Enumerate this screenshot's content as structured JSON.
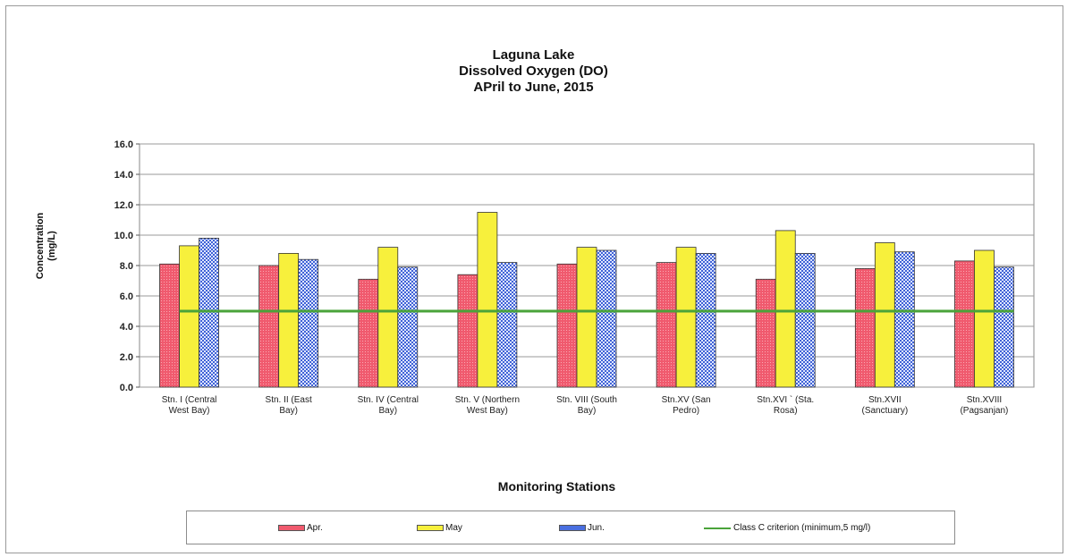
{
  "chart_data": {
    "type": "bar",
    "title_lines": [
      "Laguna Lake",
      "Dissolved Oxygen (DO)",
      "APril to June, 2015"
    ],
    "xlabel": "Monitoring Stations",
    "ylabel_lines": [
      "Concentration",
      "(mg/L)"
    ],
    "ylim": [
      0,
      16
    ],
    "yticks": [
      "0.0",
      "2.0",
      "4.0",
      "6.0",
      "8.0",
      "10.0",
      "12.0",
      "14.0",
      "16.0"
    ],
    "grid": true,
    "legend_position": "bottom",
    "categories": [
      [
        "Stn. I     (Central",
        "West Bay)"
      ],
      [
        "Stn. II    (East",
        "Bay)"
      ],
      [
        "Stn. IV    (Central",
        "Bay)"
      ],
      [
        "Stn. V     (Northern",
        "West Bay)"
      ],
      [
        "Stn. VIII   (South",
        "Bay)"
      ],
      [
        "Stn.XV      (San",
        "Pedro)"
      ],
      [
        "Stn.XVI    `  (Sta.",
        "Rosa)"
      ],
      [
        "Stn.XVII",
        "(Sanctuary)"
      ],
      [
        "Stn.XVIII",
        "(Pagsanjan)"
      ]
    ],
    "series": [
      {
        "name": "Apr.",
        "color": "#f05a6e",
        "values": [
          8.1,
          8.0,
          7.1,
          7.4,
          8.1,
          8.2,
          7.1,
          7.8,
          8.3
        ]
      },
      {
        "name": "May",
        "color": "#f7f03c",
        "values": [
          9.3,
          8.8,
          9.2,
          11.5,
          9.2,
          9.2,
          10.3,
          9.5,
          9.0
        ]
      },
      {
        "name": "Jun.",
        "color": "#4a6fe0",
        "values": [
          9.8,
          8.4,
          7.9,
          8.2,
          9.0,
          8.8,
          8.8,
          8.9,
          7.9
        ]
      }
    ],
    "reference_line": {
      "name": "Class C criterion (minimum,5 mg/l)",
      "value": 5.0,
      "color": "#4aa33a"
    }
  }
}
